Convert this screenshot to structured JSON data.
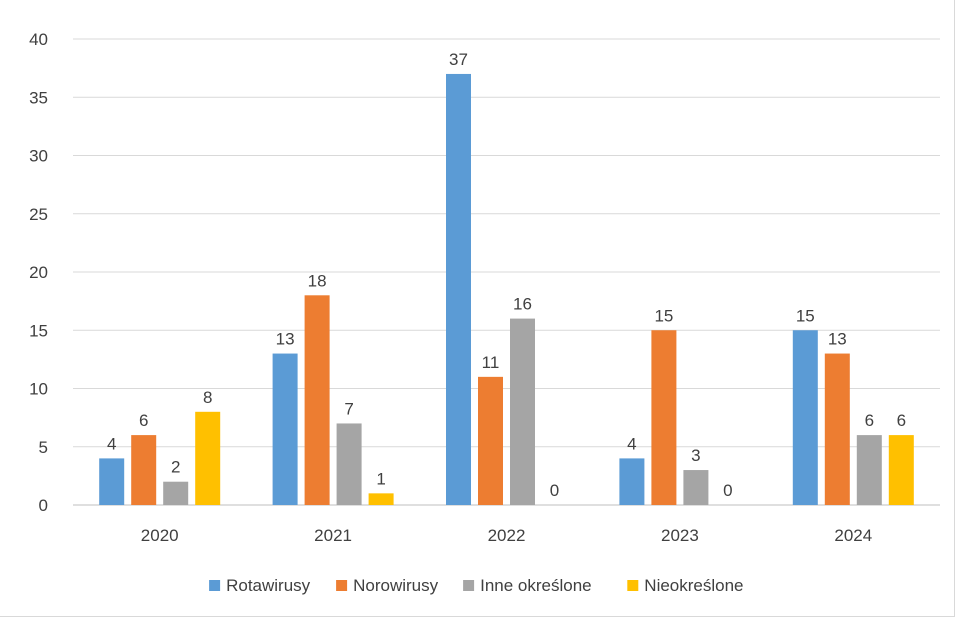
{
  "chart_data": {
    "type": "bar",
    "title": "",
    "xlabel": "",
    "ylabel": "",
    "categories": [
      "2020",
      "2021",
      "2022",
      "2023",
      "2024"
    ],
    "ylim": [
      0,
      40
    ],
    "yticks": [
      0,
      5,
      10,
      15,
      20,
      25,
      30,
      35,
      40
    ],
    "grid": true,
    "legend_position": "bottom",
    "data_labels": true,
    "series": [
      {
        "name": "Rotawirusy",
        "color": "#5b9bd5",
        "values": [
          4,
          13,
          37,
          4,
          15
        ]
      },
      {
        "name": "Norowirusy",
        "color": "#ed7d31",
        "values": [
          6,
          18,
          11,
          15,
          13
        ]
      },
      {
        "name": "Inne określone",
        "color": "#a5a5a5",
        "values": [
          2,
          7,
          16,
          3,
          6
        ]
      },
      {
        "name": "Nieokreślone",
        "color": "#ffc000",
        "values": [
          8,
          1,
          0,
          0,
          6
        ]
      }
    ]
  }
}
